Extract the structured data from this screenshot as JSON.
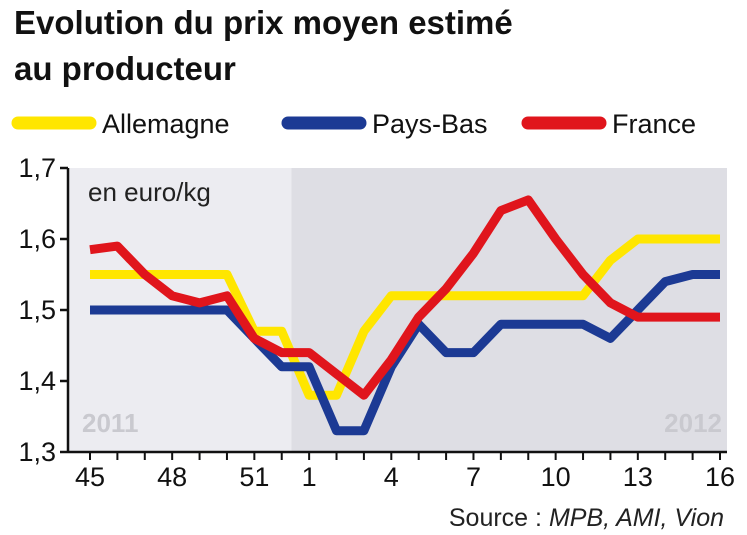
{
  "chart_data": {
    "type": "line",
    "title_lines": [
      "Evolution du prix moyen estimé",
      "au producteur"
    ],
    "unit_label": "en euro/kg",
    "year_labels": [
      "2011",
      "2012"
    ],
    "source_prefix": "Source : ",
    "source_names": "MPB, AMI, Vion",
    "x_tick_labels": [
      "45",
      "48",
      "51",
      "1",
      "4",
      "7",
      "10",
      "13",
      "16"
    ],
    "y_tick_labels": [
      "1,7",
      "1,6",
      "1,5",
      "1,4",
      "1,3"
    ],
    "y_ticks": [
      1.7,
      1.6,
      1.5,
      1.4,
      1.3
    ],
    "ylim": [
      1.3,
      1.7
    ],
    "x": [
      "45",
      "46",
      "47",
      "48",
      "49",
      "50",
      "51",
      "52",
      "1",
      "2",
      "3",
      "4",
      "5",
      "6",
      "7",
      "8",
      "9",
      "10",
      "11",
      "12",
      "13",
      "14",
      "15",
      "16"
    ],
    "series": [
      {
        "name": "Allemagne",
        "color": "#ffe600",
        "values": [
          1.55,
          1.55,
          1.55,
          1.55,
          1.55,
          1.55,
          1.47,
          1.47,
          1.38,
          1.38,
          1.47,
          1.52,
          1.52,
          1.52,
          1.52,
          1.52,
          1.52,
          1.52,
          1.52,
          1.57,
          1.6,
          1.6,
          1.6,
          1.6
        ]
      },
      {
        "name": "Pays-Bas",
        "color": "#1c3a94",
        "values": [
          1.5,
          1.5,
          1.5,
          1.5,
          1.5,
          1.5,
          1.46,
          1.42,
          1.42,
          1.33,
          1.33,
          1.42,
          1.48,
          1.44,
          1.44,
          1.48,
          1.48,
          1.48,
          1.48,
          1.46,
          1.5,
          1.54,
          1.55,
          1.55
        ]
      },
      {
        "name": "France",
        "color": "#e0151c",
        "values": [
          1.585,
          1.59,
          1.55,
          1.52,
          1.51,
          1.52,
          1.46,
          1.44,
          1.44,
          1.41,
          1.38,
          1.43,
          1.49,
          1.53,
          1.58,
          1.64,
          1.655,
          1.6,
          1.55,
          1.51,
          1.49,
          1.49,
          1.49,
          1.49
        ]
      }
    ],
    "shaded_region_start": "1",
    "grid": false,
    "legend_position": "top"
  }
}
